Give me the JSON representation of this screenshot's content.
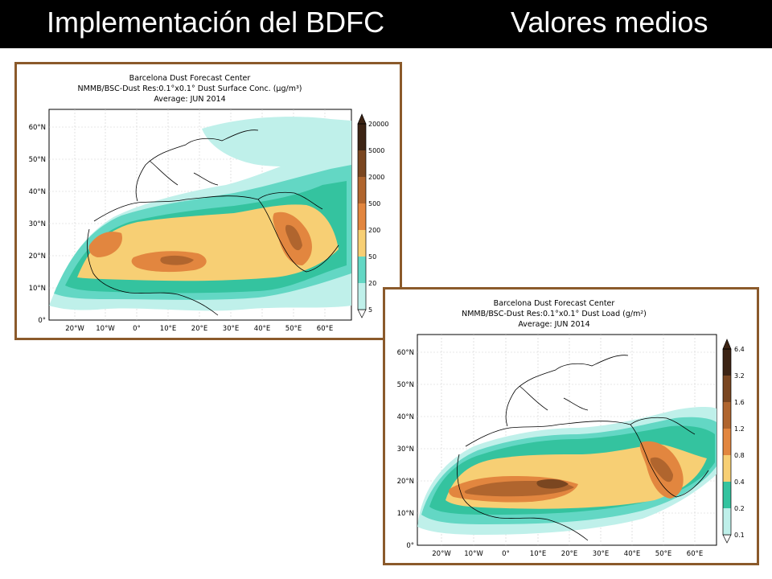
{
  "header": {
    "left_title": "Implementación del BDFC",
    "right_title": "Valores medios"
  },
  "colors": {
    "background_bar": "#000000",
    "frame": "#8b5a2b",
    "scale": [
      "#bff0ea",
      "#63d7c4",
      "#34c39f",
      "#f7cf74",
      "#e2863f",
      "#b0652e",
      "#7a4620",
      "#3d2414"
    ]
  },
  "maps": [
    {
      "title_lines": [
        "Barcelona Dust Forecast Center",
        "NMMB/BSC-Dust    Res:0.1°x0.1°    Dust Surface Conc. (µg/m³)",
        "Average: JUN 2014"
      ],
      "lat_labels": [
        "60°N",
        "50°N",
        "40°N",
        "30°N",
        "20°N",
        "10°N",
        "0°"
      ],
      "lon_labels": [
        "20°W",
        "10°W",
        "0°",
        "10°E",
        "20°E",
        "30°E",
        "40°E",
        "50°E",
        "60°E"
      ],
      "colorbar_labels": [
        "5",
        "20",
        "50",
        "200",
        "500",
        "2000",
        "5000",
        "20000"
      ]
    },
    {
      "title_lines": [
        "Barcelona Dust Forecast Center",
        "NMMB/BSC-Dust    Res:0.1°x0.1°    Dust Load (g/m²)",
        "Average: JUN 2014"
      ],
      "lat_labels": [
        "60°N",
        "50°N",
        "40°N",
        "30°N",
        "20°N",
        "10°N",
        "0°"
      ],
      "lon_labels": [
        "20°W",
        "10°W",
        "0°",
        "10°E",
        "20°E",
        "30°E",
        "40°E",
        "50°E",
        "60°E"
      ],
      "colorbar_labels": [
        "0.1",
        "0.2",
        "0.4",
        "0.8",
        "1.2",
        "1.6",
        "3.2",
        "6.4"
      ]
    }
  ]
}
